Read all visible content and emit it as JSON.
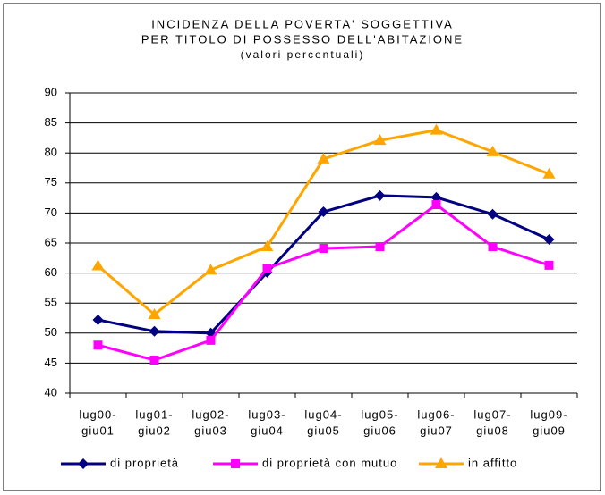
{
  "chart_data": {
    "type": "line",
    "title": [
      "INCIDENZA DELLA POVERTA' SOGGETTIVA",
      "PER TITOLO DI POSSESSO DELL'ABITAZIONE",
      "(valori percentuali)"
    ],
    "categories": [
      [
        "lug00-",
        "giu01"
      ],
      [
        "lug01-",
        "giu02"
      ],
      [
        "lug02-",
        "giu03"
      ],
      [
        "lug03-",
        "giu04"
      ],
      [
        "lug04-",
        "giu05"
      ],
      [
        "lug05-",
        "giu06"
      ],
      [
        "lug06-",
        "giu07"
      ],
      [
        "lug07-",
        "giu08"
      ],
      [
        "lug09-",
        "giu09"
      ]
    ],
    "series": [
      {
        "name": "di proprietà",
        "color": "#000080",
        "marker": "diamond",
        "values": [
          52.2,
          50.3,
          50.0,
          60.1,
          70.2,
          72.9,
          72.6,
          69.8,
          65.6
        ]
      },
      {
        "name": "di proprietà con mutuo",
        "color": "#ff00ff",
        "marker": "square",
        "values": [
          48.0,
          45.5,
          48.8,
          60.8,
          64.1,
          64.4,
          71.4,
          64.4,
          61.3
        ]
      },
      {
        "name": "in affitto",
        "color": "#ffa500",
        "marker": "triangle",
        "values": [
          61.2,
          53.1,
          60.5,
          64.4,
          79.0,
          82.1,
          83.8,
          80.2,
          76.5
        ]
      }
    ],
    "ylim": [
      40,
      90
    ],
    "yticks": [
      40,
      45,
      50,
      55,
      60,
      65,
      70,
      75,
      80,
      85,
      90
    ],
    "grid": true,
    "legend": "bottom"
  }
}
